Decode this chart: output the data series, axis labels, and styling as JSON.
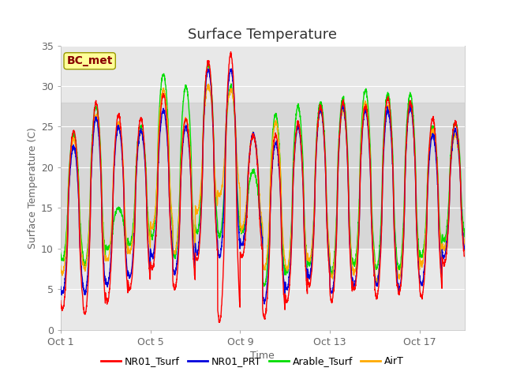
{
  "title": "Surface Temperature",
  "xlabel": "Time",
  "ylabel": "Surface Temperature (C)",
  "ylim": [
    0,
    35
  ],
  "annotation": "BC_met",
  "series_colors": {
    "NR01_Tsurf": "#ff0000",
    "NR01_PRT": "#0000dd",
    "Arable_Tsurf": "#00dd00",
    "AirT": "#ffaa00"
  },
  "series_order": [
    "Arable_Tsurf",
    "AirT",
    "NR01_PRT",
    "NR01_Tsurf"
  ],
  "xtick_labels": [
    "Oct 1",
    "Oct 5",
    "Oct 9",
    "Oct 13",
    "Oct 17"
  ],
  "xtick_positions": [
    0,
    4,
    8,
    12,
    16
  ],
  "ytick_labels": [
    "0",
    "5",
    "10",
    "15",
    "20",
    "25",
    "30",
    "35"
  ],
  "ytick_positions": [
    0,
    5,
    10,
    15,
    20,
    25,
    30,
    35
  ],
  "shaded_band": [
    10,
    28
  ],
  "plot_bg_color": "#e8e8e8",
  "title_fontsize": 13,
  "axis_label_fontsize": 9,
  "tick_fontsize": 9,
  "legend_fontsize": 9,
  "line_width": 1.0,
  "num_days": 18,
  "num_cycles": 18,
  "peaks_NR01_Tsurf": [
    24.5,
    28.0,
    26.5,
    26.0,
    29.0,
    26.0,
    33.0,
    34.0,
    24.0,
    24.0,
    25.5,
    27.5,
    28.0,
    27.5,
    28.5,
    28.0,
    26.0,
    25.5
  ],
  "peaks_NR01_PRT": [
    22.5,
    26.0,
    25.0,
    24.5,
    27.0,
    25.0,
    32.0,
    32.0,
    24.0,
    23.0,
    25.0,
    27.0,
    27.5,
    27.0,
    27.0,
    27.5,
    24.0,
    24.5
  ],
  "peaks_Arable_Tsurf": [
    24.0,
    27.5,
    15.0,
    25.0,
    31.5,
    30.0,
    32.5,
    30.0,
    19.5,
    26.5,
    27.5,
    28.0,
    28.5,
    29.5,
    29.0,
    29.0,
    25.0,
    25.5
  ],
  "peaks_AirT": [
    23.5,
    26.5,
    25.5,
    24.5,
    29.5,
    26.0,
    30.0,
    29.5,
    24.0,
    25.5,
    25.0,
    27.0,
    27.0,
    28.0,
    27.5,
    27.5,
    24.5,
    24.0
  ],
  "troughs_NR01_Tsurf": [
    2.5,
    2.0,
    3.5,
    5.0,
    7.5,
    5.0,
    8.5,
    1.0,
    9.0,
    1.5,
    3.5,
    5.5,
    3.5,
    5.0,
    4.0,
    4.5,
    4.0,
    8.0
  ],
  "troughs_NR01_PRT": [
    4.5,
    4.5,
    5.5,
    6.5,
    9.0,
    7.0,
    9.5,
    9.0,
    10.5,
    3.5,
    5.0,
    6.5,
    4.5,
    5.5,
    5.5,
    5.0,
    5.5,
    9.0
  ],
  "troughs_Arable_Tsurf": [
    8.5,
    8.0,
    10.0,
    10.5,
    11.5,
    9.0,
    12.0,
    11.5,
    12.0,
    5.5,
    7.0,
    8.0,
    7.0,
    8.0,
    7.5,
    7.5,
    9.0,
    11.0
  ],
  "troughs_AirT": [
    7.0,
    7.5,
    8.5,
    9.5,
    12.5,
    9.5,
    14.5,
    16.5,
    12.5,
    7.5,
    7.5,
    8.5,
    6.5,
    7.0,
    6.0,
    6.5,
    8.0,
    10.0
  ]
}
